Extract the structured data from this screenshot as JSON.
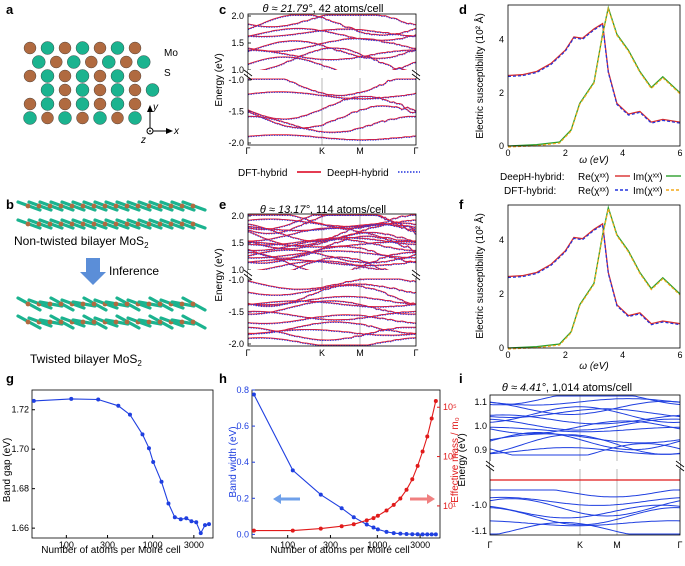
{
  "labels": {
    "a": "a",
    "b": "b",
    "c": "c",
    "d": "d",
    "e": "e",
    "f": "f",
    "g": "g",
    "h": "h",
    "i": "i"
  },
  "colors": {
    "dft": "#e0203a",
    "deeph": "#2233dd",
    "re_dft": "#d92d2d",
    "im_dft": "#f4a818",
    "re_deeph": "#2233dd",
    "im_deeph": "#2ca02c",
    "mo": "#b06a40",
    "s": "#1bb38f",
    "blue": "#1f3fe0",
    "red": "#e11a1a"
  },
  "panel_a": {
    "mo": "Mo",
    "s": "S",
    "axis_y": "y",
    "axis_x": "x",
    "axis_z": "z"
  },
  "panel_b": {
    "non_twisted": "Non-twisted bilayer MoS",
    "twisted": "Twisted bilayer MoS",
    "sub": "2",
    "inference": "Inference"
  },
  "panel_c": {
    "title_theta": "θ ≈ 21.79°",
    "title_rest": ", 42 atoms/cell",
    "ylabel": "Energy (eV)",
    "yticks_top": [
      "2.0",
      "1.5",
      "1.0"
    ],
    "yticks_bot": [
      "-1.0",
      "-1.5",
      "-2.0"
    ],
    "kpath": [
      "Γ",
      "K",
      "M",
      "Γ"
    ]
  },
  "legend_c": {
    "dft": "DFT-hybrid",
    "deeph": "DeepH-hybrid"
  },
  "panel_d": {
    "ylabel": "Electric susceptibility (10² Å)",
    "xlabel": "ω (eV)",
    "xticks": [
      "0",
      "2",
      "4",
      "6"
    ],
    "yticks": [
      "0",
      "2",
      "4"
    ],
    "legend": {
      "deeph": "DeepH-hybrid:",
      "dft": "DFT-hybrid:",
      "re": "Re(χˣˣ)",
      "im": "Im(χˣˣ)"
    }
  },
  "panel_e": {
    "title_theta": "θ ≈ 13.17°",
    "title_rest": ", 114 atoms/cell",
    "ylabel": "Energy (eV)",
    "yticks_top": [
      "2.0",
      "1.5",
      "1.0"
    ],
    "yticks_bot": [
      "-1.0",
      "-1.5",
      "-2.0"
    ],
    "kpath": [
      "Γ",
      "K",
      "M",
      "Γ"
    ]
  },
  "panel_f": {
    "ylabel": "Electric susceptibility (10² Å)",
    "xlabel": "ω (eV)",
    "xticks": [
      "0",
      "2",
      "4",
      "6"
    ],
    "yticks": [
      "0",
      "2",
      "4"
    ]
  },
  "panel_i": {
    "title_theta": "θ ≈ 4.41°",
    "title_rest": ", 1,014 atoms/cell",
    "ylabel": "Energy (eV)",
    "yticks_top": [
      "1.1",
      "1.0",
      "0.9"
    ],
    "yticks_bot": [
      "-1.0",
      "-1.1"
    ],
    "kpath": [
      "Γ",
      "K",
      "M",
      "Γ"
    ]
  },
  "chart_data": [
    {
      "type": "line",
      "id": "g",
      "title": "",
      "xlabel": "Number of atoms per Moiré cell",
      "ylabel": "Band gap (eV)",
      "xscale": "log",
      "xlim": [
        40,
        5000
      ],
      "ylim": [
        1.655,
        1.73
      ],
      "xticks": [
        "100",
        "300",
        "1000",
        "3000"
      ],
      "yticks": [
        "1.66",
        "1.68",
        "1.70",
        "1.72"
      ],
      "series": [
        {
          "name": "Band gap",
          "color": "#1f3fe0",
          "x": [
            42,
            114,
            234,
            400,
            546,
            762,
            906,
            1014,
            1266,
            1524,
            1806,
            2116,
            2454,
            2814,
            3198,
            3606,
            4038,
            4494
          ],
          "y": [
            1.7245,
            1.7255,
            1.7252,
            1.722,
            1.7175,
            1.7075,
            1.7005,
            1.6935,
            1.6835,
            1.6725,
            1.6655,
            1.6645,
            1.665,
            1.6635,
            1.663,
            1.6575,
            1.6615,
            1.662
          ]
        }
      ]
    },
    {
      "type": "line",
      "id": "h",
      "title": "",
      "xlabel": "Number of atoms per Moiré cell",
      "ylabel": "Band width (eV)",
      "ylabel_right": "Effective mass / m₀",
      "xscale": "log",
      "xlim": [
        40,
        5000
      ],
      "ylim": [
        -0.02,
        0.8
      ],
      "ylim_right_log": [
        0.5,
        500000
      ],
      "xticks": [
        "100",
        "300",
        "1000",
        "3000"
      ],
      "yticks": [
        "0.0",
        "0.2",
        "0.4",
        "0.6",
        "0.8"
      ],
      "yticks_right": [
        "10¹",
        "10³",
        "10⁵"
      ],
      "series": [
        {
          "name": "Band width",
          "axis": "left",
          "color": "#1f3fe0",
          "x": [
            42,
            114,
            234,
            400,
            546,
            762,
            906,
            1014,
            1266,
            1524,
            1806,
            2116,
            2454,
            2814,
            3198,
            3606,
            4038,
            4494
          ],
          "y": [
            0.775,
            0.355,
            0.22,
            0.145,
            0.095,
            0.055,
            0.038,
            0.028,
            0.014,
            0.007,
            0.004,
            0.002,
            0.001,
            0.001,
            0.0,
            0.0,
            0.0,
            0.0
          ]
        },
        {
          "name": "Effective mass",
          "axis": "right",
          "color": "#e11a1a",
          "x": [
            42,
            114,
            234,
            400,
            546,
            762,
            906,
            1014,
            1266,
            1524,
            1806,
            2116,
            2454,
            2814,
            3198,
            3606,
            4038,
            4494
          ],
          "y": [
            1.0,
            1.0,
            1.2,
            1.5,
            1.8,
            2.6,
            3.2,
            4.0,
            6.5,
            11,
            20,
            45,
            120,
            420,
            1600,
            6500,
            35000,
            180000
          ]
        }
      ]
    }
  ]
}
